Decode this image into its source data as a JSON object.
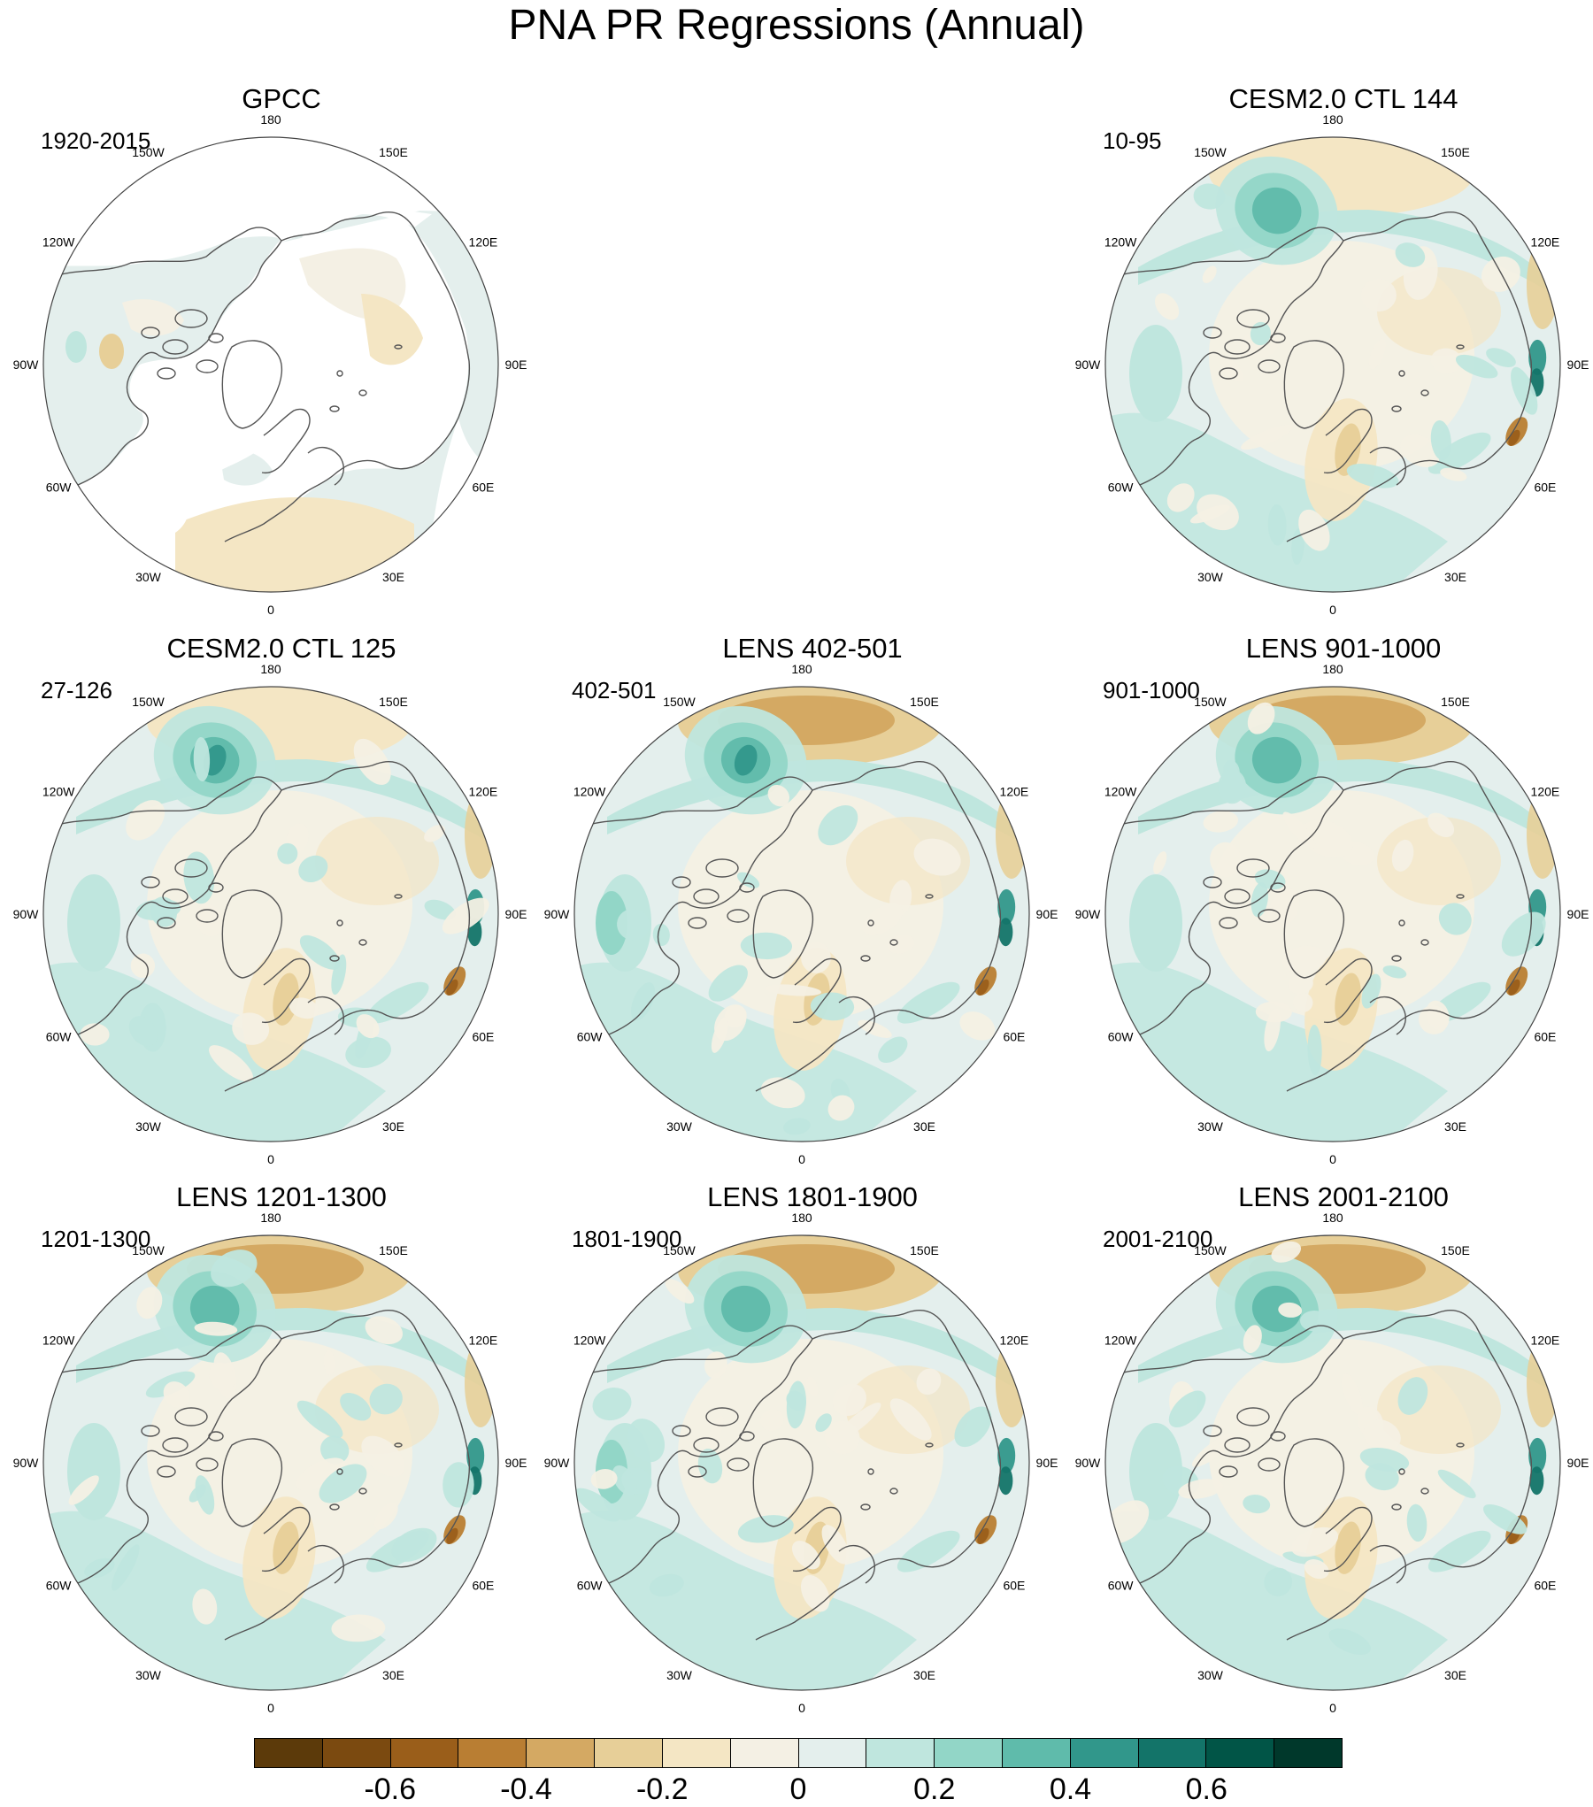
{
  "title": "PNA PR Regressions (Annual)",
  "lon_labels": [
    "180",
    "150E",
    "120E",
    "90E",
    "60E",
    "30E",
    "0",
    "30W",
    "60W",
    "90W",
    "120W",
    "150W"
  ],
  "panels": [
    {
      "title": "GPCC",
      "period": "1920-2015",
      "observational": true
    },
    {
      "title": "CESM2.0 CTL 144",
      "period": "10-95"
    },
    {
      "title": "CESM2.0 CTL 125",
      "period": "27-126"
    },
    {
      "title": "LENS 402-501",
      "period": "402-501"
    },
    {
      "title": "LENS 901-1000",
      "period": "901-1000"
    },
    {
      "title": "LENS 1201-1300",
      "period": "1201-1300"
    },
    {
      "title": "LENS 1801-1900",
      "period": "1801-1900"
    },
    {
      "title": "LENS 2001-2100",
      "period": "2001-2100"
    }
  ],
  "colorbar": {
    "colors": [
      "#5c3a0a",
      "#7b4a10",
      "#9a5e1a",
      "#b97e33",
      "#d4a963",
      "#e7cf98",
      "#f4e6c4",
      "#f4f0e4",
      "#e4efed",
      "#bfe6de",
      "#92d6c7",
      "#5fbbab",
      "#31978b",
      "#137469",
      "#015547",
      "#00382b"
    ],
    "ticks": [
      "-0.6",
      "-0.4",
      "-0.2",
      "0",
      "0.2",
      "0.4",
      "0.6"
    ],
    "tick_values": [
      -0.6,
      -0.4,
      -0.2,
      0,
      0.2,
      0.4,
      0.6
    ],
    "levels": [
      -0.7,
      -0.6,
      -0.5,
      -0.4,
      -0.3,
      -0.2,
      -0.1,
      0,
      0.1,
      0.2,
      0.3,
      0.4,
      0.5,
      0.6,
      0.7
    ]
  }
}
